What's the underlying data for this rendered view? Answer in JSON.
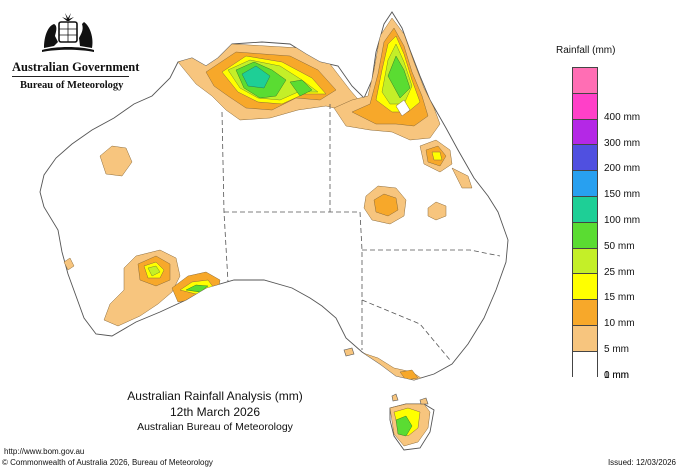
{
  "header": {
    "government": "Australian Government",
    "agency": "Bureau of Meteorology"
  },
  "legend": {
    "title": "Rainfall (mm)",
    "items": [
      {
        "label": "",
        "color": "#ff6eb4"
      },
      {
        "label": "400 mm",
        "color": "#ff40c8"
      },
      {
        "label": "300 mm",
        "color": "#b428e6"
      },
      {
        "label": "200 mm",
        "color": "#5050e0"
      },
      {
        "label": "150 mm",
        "color": "#28a0f0"
      },
      {
        "label": "100 mm",
        "color": "#1ecf96"
      },
      {
        "label": "50 mm",
        "color": "#5adc32"
      },
      {
        "label": "25 mm",
        "color": "#c4ef28"
      },
      {
        "label": "15 mm",
        "color": "#ffff00"
      },
      {
        "label": "10 mm",
        "color": "#f7a82a"
      },
      {
        "label": "5 mm",
        "color": "#f7c57e"
      },
      {
        "label": "1 mm",
        "color": "#ffffff"
      },
      {
        "label": "0 mm",
        "color": "#ffffff"
      }
    ]
  },
  "title": {
    "main": "Australian Rainfall Analysis (mm)",
    "date": "12th March 2026",
    "org": "Australian Bureau of Meteorology"
  },
  "footer": {
    "url": "http://www.bom.gov.au",
    "copyright": "© Commonwealth of Australia 2026, Bureau of Meteorology",
    "issued": "Issued: 12/03/2026"
  }
}
